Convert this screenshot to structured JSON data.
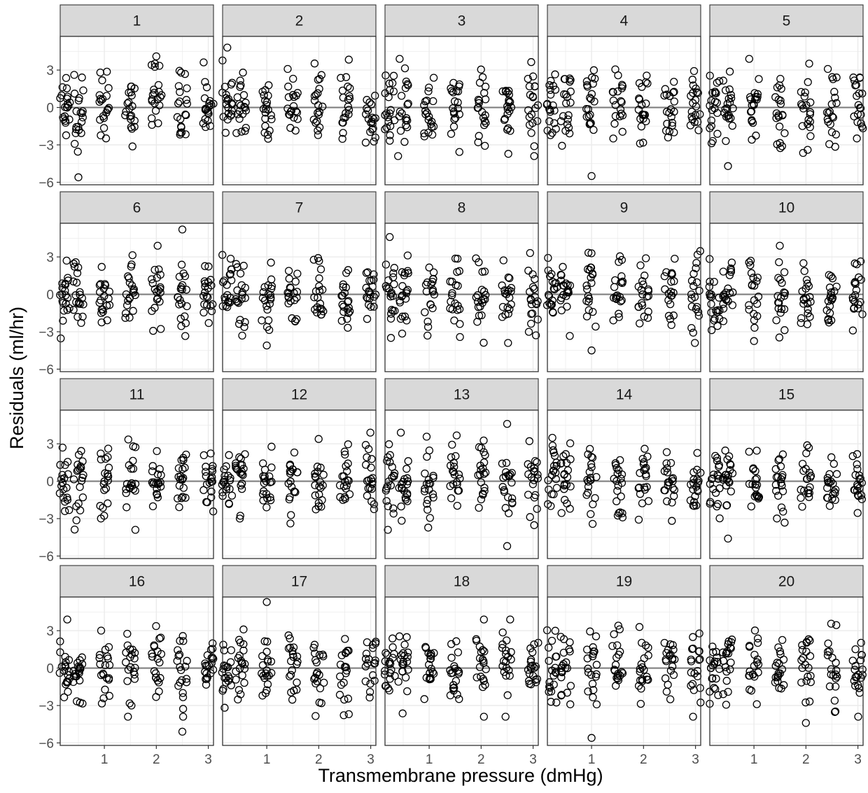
{
  "chart_data": {
    "type": "scatter",
    "xlabel": "Transmembrane pressure (dmHg)",
    "ylabel": "Residuals (ml/hr)",
    "panel_labels": [
      "1",
      "2",
      "3",
      "4",
      "5",
      "6",
      "7",
      "8",
      "9",
      "10",
      "11",
      "12",
      "13",
      "14",
      "15",
      "16",
      "17",
      "18",
      "19",
      "20"
    ],
    "x_positions": [
      0.24,
      0.5,
      1.0,
      1.5,
      2.0,
      2.5,
      3.0
    ],
    "points_per_position": 20,
    "xlim": [
      0.15,
      3.1
    ],
    "ylim": [
      -6.2,
      5.7
    ],
    "x_ticks": [
      "1",
      "2",
      "3"
    ],
    "x_tick_values": [
      1,
      2,
      3
    ],
    "y_ticks": [
      "3",
      "0",
      "−3",
      "−6"
    ],
    "y_tick_values": [
      3,
      0,
      -3,
      -6
    ],
    "reference_line": 0,
    "grid": true,
    "layout": {
      "rows": 4,
      "cols": 5
    },
    "colors": {
      "panel_border": "#333333",
      "strip_fill": "#d9d9d9",
      "grid": "#ebebeb",
      "reference_line": "#7f7f7f",
      "point": "#000000"
    },
    "notable_points": [
      {
        "panel": "1",
        "x": 0.5,
        "y": -5.6
      },
      {
        "panel": "1",
        "x": 2.0,
        "y": 4.1
      },
      {
        "panel": "2",
        "x": 0.24,
        "y": 4.8
      },
      {
        "panel": "4",
        "x": 1.0,
        "y": -5.5
      },
      {
        "panel": "5",
        "x": 0.5,
        "y": -4.7
      },
      {
        "panel": "6",
        "x": 2.5,
        "y": 5.2
      },
      {
        "panel": "7",
        "x": 1.0,
        "y": -4.1
      },
      {
        "panel": "8",
        "x": 0.24,
        "y": 4.6
      },
      {
        "panel": "9",
        "x": 1.0,
        "y": -4.5
      },
      {
        "panel": "13",
        "x": 2.5,
        "y": -5.2
      },
      {
        "panel": "13",
        "x": 2.5,
        "y": 4.6
      },
      {
        "panel": "15",
        "x": 0.5,
        "y": -4.6
      },
      {
        "panel": "16",
        "x": 2.5,
        "y": -5.1
      },
      {
        "panel": "17",
        "x": 1.0,
        "y": 5.3
      },
      {
        "panel": "19",
        "x": 1.0,
        "y": -5.6
      },
      {
        "panel": "20",
        "x": 2.0,
        "y": -4.4
      }
    ]
  }
}
